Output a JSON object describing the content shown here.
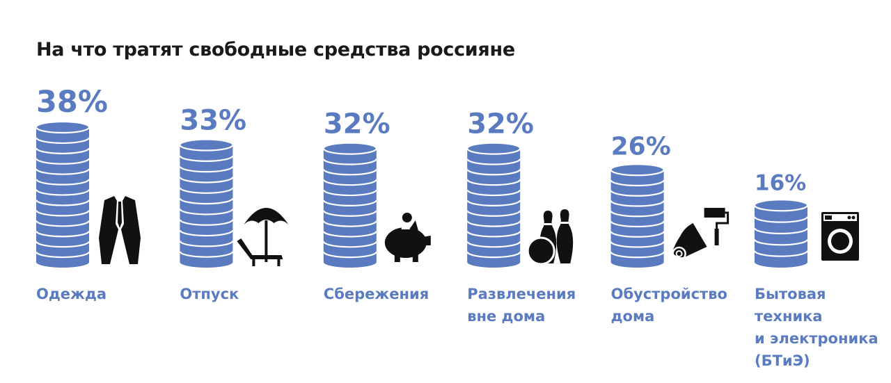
{
  "chart_data": {
    "type": "bar",
    "title": "На что тратят свободные средства россияне",
    "categories": [
      "Одежда",
      "Отпуск",
      "Сбережения",
      "Развлечения вне дома",
      "Обустройство дома",
      "Бытовая техника и электроника (БТиЭ)"
    ],
    "category_lines": [
      [
        "Одежда"
      ],
      [
        "Отпуск"
      ],
      [
        "Сбережения"
      ],
      [
        "Развлечения",
        "вне дома"
      ],
      [
        "Обустройство",
        "дома"
      ],
      [
        "Бытовая",
        "техника",
        "и электроника",
        "(БТиЭ)"
      ]
    ],
    "values": [
      38,
      33,
      32,
      32,
      26,
      16
    ],
    "value_labels": [
      "38%",
      "33%",
      "32%",
      "32%",
      "26%",
      "16%"
    ],
    "icons": [
      "suit-icon",
      "beach-umbrella-icon",
      "piggy-bank-icon",
      "bowling-icon",
      "paint-roller-icon",
      "washing-machine-icon"
    ],
    "unit": "%",
    "ylim": [
      0,
      38
    ]
  },
  "colors": {
    "coin": "#5b7bc0",
    "coin_edge": "#ffffff",
    "label": "#5b7bc0",
    "icon": "#111111",
    "title": "#1a1a1a"
  }
}
